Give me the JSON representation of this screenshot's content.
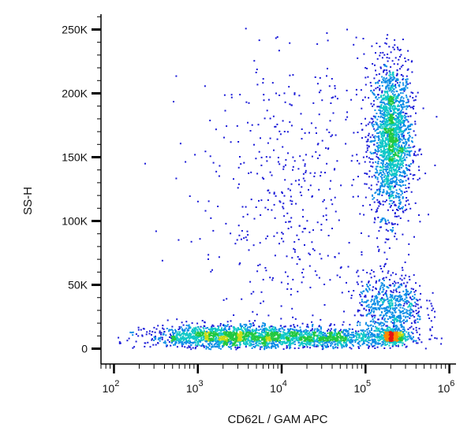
{
  "chart_data": {
    "type": "scatter",
    "subtype": "flow-cytometry-density-dot-plot",
    "title": "",
    "xlabel": "CD62L / GAM APC",
    "ylabel": "SS-H",
    "x_scale": "log",
    "xlim": [
      70,
      1200000
    ],
    "ylim": [
      -12000,
      262000
    ],
    "x_ticks": [
      {
        "value": 100,
        "base": "10",
        "exp": "2"
      },
      {
        "value": 1000,
        "base": "10",
        "exp": "3"
      },
      {
        "value": 10000,
        "base": "10",
        "exp": "4"
      },
      {
        "value": 100000,
        "base": "10",
        "exp": "5"
      },
      {
        "value": 1000000,
        "base": "10",
        "exp": "6"
      }
    ],
    "y_ticks": [
      {
        "value": 0,
        "label": "0"
      },
      {
        "value": 50000,
        "label": "50K"
      },
      {
        "value": 100000,
        "label": "100K"
      },
      {
        "value": 150000,
        "label": "150K"
      },
      {
        "value": 200000,
        "label": "200K"
      },
      {
        "value": 250000,
        "label": "250K"
      }
    ],
    "grid": false,
    "legend": "none",
    "density_colors": [
      "#1a1ad8",
      "#0a8ce6",
      "#10c8c8",
      "#22c840",
      "#c8dc14",
      "#ff8c00",
      "#e61414"
    ],
    "populations": [
      {
        "x_center": 200000,
        "x_spread_decades": 0.12,
        "y_center": 165000,
        "y_spread": 30000,
        "count": 1900
      },
      {
        "x_center": 200000,
        "x_spread_decades": 0.08,
        "y_center": 10000,
        "y_spread": 3000,
        "count": 420
      },
      {
        "x_center": 200000,
        "x_spread_decades": 0.2,
        "y_center": 33000,
        "y_spread": 13000,
        "count": 650
      },
      {
        "x_center": 2000,
        "x_spread_decades": 0.45,
        "y_center": 10000,
        "y_spread": 4500,
        "count": 1400
      },
      {
        "x_center": 25000,
        "x_spread_decades": 0.55,
        "y_center": 9000,
        "y_spread": 4000,
        "count": 1200
      },
      {
        "x_center": 15000,
        "x_spread_decades": 0.6,
        "y_center": 120000,
        "y_spread": 70000,
        "count": 550
      }
    ]
  }
}
